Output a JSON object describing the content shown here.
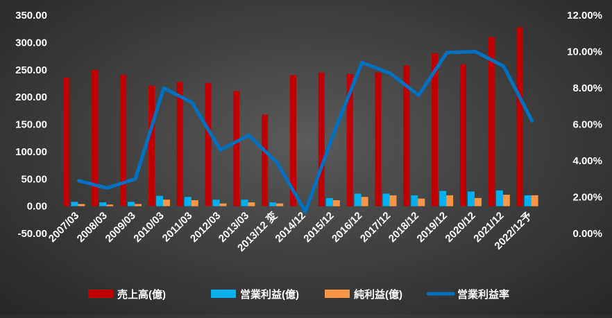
{
  "chart_data": {
    "type": "bar",
    "categories": [
      "2007/03",
      "2008/03",
      "2009/03",
      "2010/03",
      "2011/03",
      "2012/03",
      "2013/03",
      "2013/12 変",
      "2014/12",
      "2015/12",
      "2016/12",
      "2017/12",
      "2018/12",
      "2019/12",
      "2020/12",
      "2021/12",
      "2022/12予"
    ],
    "series": [
      {
        "name": "売上高(億)",
        "type": "bar",
        "axis": "left",
        "color": "#c00000",
        "values": [
          236,
          250,
          241,
          221,
          228,
          226,
          211,
          168,
          240,
          245,
          242,
          245,
          258,
          280,
          260,
          310,
          328
        ]
      },
      {
        "name": "営業利益(億)",
        "type": "bar",
        "axis": "left",
        "color": "#00b0f0",
        "values": [
          8,
          7,
          8,
          19,
          17,
          12,
          12,
          7,
          0,
          15,
          23,
          23,
          20,
          28,
          27,
          29,
          20
        ]
      },
      {
        "name": "純利益(億)",
        "type": "bar",
        "axis": "left",
        "color": "#f79646",
        "values": [
          4,
          3,
          4,
          12,
          11,
          5,
          7,
          5,
          0,
          11,
          17,
          20,
          14,
          20,
          15,
          21,
          20
        ]
      },
      {
        "name": "営業利益率",
        "type": "line",
        "axis": "right",
        "color": "#0070c0",
        "values": [
          2.9,
          2.5,
          3.0,
          8.0,
          7.2,
          4.6,
          5.4,
          3.9,
          1.2,
          5.5,
          9.4,
          8.8,
          7.6,
          9.95,
          10.0,
          9.2,
          6.2
        ]
      }
    ],
    "y_left": {
      "min": -50,
      "max": 350,
      "step": 50,
      "decimals": 2,
      "suffix": ""
    },
    "y_right": {
      "min": 0,
      "max": 12,
      "step": 2,
      "decimals": 2,
      "suffix": "%"
    },
    "title": "",
    "xlabel": "",
    "ylabel": "",
    "grid": false,
    "legend_position": "bottom"
  }
}
